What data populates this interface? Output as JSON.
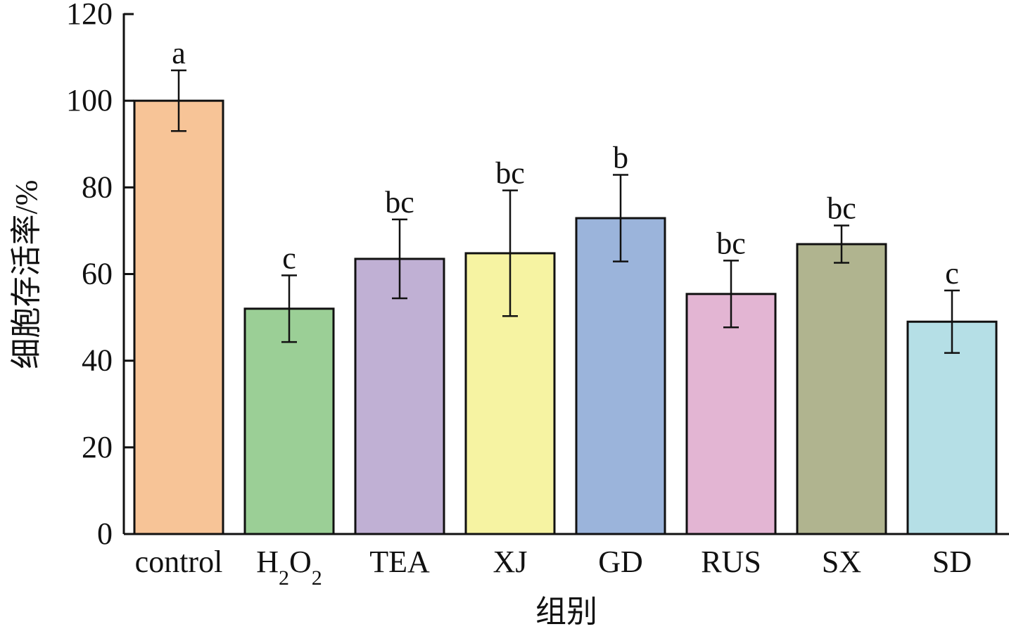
{
  "chart_data": {
    "type": "bar",
    "title": "",
    "xlabel": "组别",
    "ylabel": "细胞存活率/%",
    "ylim": [
      0,
      120
    ],
    "yticks": [
      0,
      20,
      40,
      60,
      80,
      100,
      120
    ],
    "grid": false,
    "categories": [
      "control",
      "H2O2",
      "TEA",
      "XJ",
      "GD",
      "RUS",
      "SX",
      "SD"
    ],
    "values": [
      100,
      52.0,
      63.5,
      64.8,
      72.9,
      55.4,
      66.9,
      49.0
    ],
    "errors": [
      7.0,
      7.7,
      9.1,
      14.5,
      10.0,
      7.7,
      4.3,
      7.2
    ],
    "significance": [
      "a",
      "c",
      "bc",
      "bc",
      "b",
      "bc",
      "bc",
      "c"
    ],
    "colors": [
      "#F7C497",
      "#9BCF96",
      "#C0B0D4",
      "#F6F3A2",
      "#9BB4DB",
      "#E3B5D3",
      "#B0B48F",
      "#B5DFE6"
    ]
  }
}
